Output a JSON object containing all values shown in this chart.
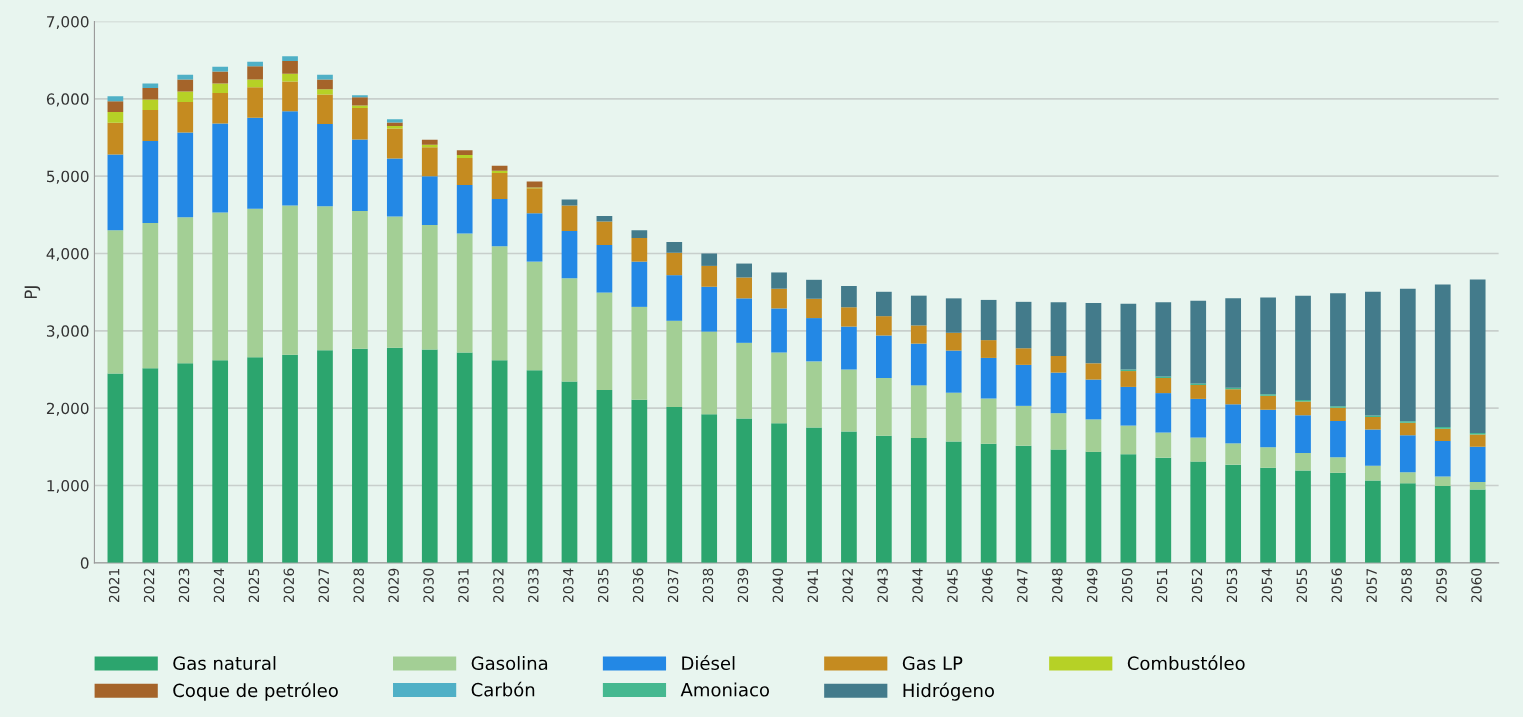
{
  "chart_data": {
    "type": "bar",
    "stacked": true,
    "ylabel": "PJ",
    "categories": [
      "2021",
      "2022",
      "2023",
      "2024",
      "2025",
      "2026",
      "2027",
      "2028",
      "2029",
      "2030",
      "2031",
      "2032",
      "2033",
      "2034",
      "2035",
      "2036",
      "2037",
      "2038",
      "2039",
      "2040",
      "2041",
      "2042",
      "2043",
      "2044",
      "2045",
      "2046",
      "2047",
      "2048",
      "2049",
      "2050",
      "2051",
      "2052",
      "2053",
      "2054",
      "2055",
      "2056",
      "2057",
      "2058",
      "2059",
      "2060"
    ],
    "ylim": [
      0,
      7000
    ],
    "yticks": [
      {
        "value": 0,
        "label": "0"
      },
      {
        "value": 1000,
        "label": "1,000"
      },
      {
        "value": 2000,
        "label": "2,000"
      },
      {
        "value": 3000,
        "label": "3,000"
      },
      {
        "value": 4000,
        "label": "4,000"
      },
      {
        "value": 5000,
        "label": "5,000"
      },
      {
        "value": 6000,
        "label": "6,000"
      },
      {
        "value": 7000,
        "label": "7,000"
      }
    ],
    "grid": "y",
    "legend": "bottom",
    "series": [
      {
        "name": "Gas natural",
        "color": "#2ca56e",
        "values": [
          2450,
          2515,
          2580,
          2620,
          2660,
          2690,
          2750,
          2770,
          2780,
          2760,
          2720,
          2620,
          2490,
          2345,
          2235,
          2110,
          2015,
          1920,
          1865,
          1805,
          1750,
          1700,
          1645,
          1615,
          1570,
          1540,
          1515,
          1465,
          1435,
          1405,
          1360,
          1310,
          1270,
          1230,
          1195,
          1165,
          1065,
          1030,
          995,
          950
        ]
      },
      {
        "name": "Gasolina",
        "color": "#a3cf95",
        "values": [
          1850,
          1880,
          1890,
          1910,
          1920,
          1930,
          1860,
          1780,
          1700,
          1610,
          1540,
          1475,
          1405,
          1335,
          1260,
          1200,
          1115,
          1070,
          980,
          915,
          855,
          800,
          745,
          680,
          630,
          585,
          515,
          470,
          420,
          370,
          325,
          310,
          275,
          265,
          225,
          200,
          190,
          140,
          120,
          95
        ]
      },
      {
        "name": "Diésel",
        "color": "#2388e5",
        "values": [
          980,
          1060,
          1095,
          1150,
          1175,
          1220,
          1065,
          925,
          750,
          630,
          625,
          610,
          625,
          610,
          615,
          585,
          590,
          580,
          575,
          570,
          560,
          555,
          550,
          540,
          545,
          525,
          530,
          525,
          515,
          500,
          510,
          500,
          505,
          485,
          490,
          470,
          470,
          480,
          460,
          455
        ]
      },
      {
        "name": "Gas LP",
        "color": "#c58b20",
        "values": [
          410,
          400,
          395,
          395,
          395,
          385,
          380,
          405,
          385,
          375,
          350,
          335,
          325,
          330,
          305,
          305,
          290,
          270,
          270,
          255,
          250,
          250,
          250,
          235,
          230,
          230,
          215,
          215,
          210,
          205,
          195,
          180,
          195,
          180,
          175,
          170,
          160,
          160,
          160,
          160
        ]
      },
      {
        "name": "Combustóleo",
        "color": "#b6d126",
        "values": [
          140,
          135,
          135,
          125,
          100,
          100,
          70,
          35,
          35,
          30,
          40,
          30,
          10,
          0,
          0,
          0,
          0,
          0,
          0,
          0,
          0,
          0,
          0,
          0,
          0,
          0,
          0,
          0,
          0,
          0,
          0,
          0,
          0,
          0,
          0,
          0,
          0,
          0,
          0,
          0
        ]
      },
      {
        "name": "Coque de petróleo",
        "color": "#a5642a",
        "values": [
          140,
          150,
          155,
          155,
          170,
          165,
          125,
          105,
          45,
          65,
          60,
          65,
          77,
          0,
          0,
          0,
          0,
          0,
          0,
          0,
          0,
          0,
          0,
          0,
          0,
          0,
          0,
          0,
          0,
          0,
          0,
          0,
          0,
          0,
          0,
          0,
          0,
          0,
          0,
          0
        ]
      },
      {
        "name": "Carbón",
        "color": "#4fb0c6",
        "values": [
          65,
          60,
          60,
          60,
          60,
          60,
          60,
          25,
          40,
          0,
          0,
          0,
          0,
          0,
          0,
          0,
          0,
          0,
          0,
          0,
          0,
          0,
          0,
          0,
          0,
          0,
          0,
          0,
          0,
          0,
          0,
          0,
          0,
          0,
          0,
          0,
          0,
          0,
          0,
          0
        ]
      },
      {
        "name": "Amoniaco",
        "color": "#45b890",
        "values": [
          0,
          0,
          0,
          0,
          0,
          0,
          0,
          0,
          0,
          0,
          0,
          0,
          0,
          0,
          0,
          0,
          0,
          0,
          0,
          0,
          0,
          0,
          0,
          0,
          0,
          0,
          0,
          0,
          0,
          20,
          20,
          20,
          20,
          20,
          20,
          20,
          20,
          20,
          20,
          20
        ]
      },
      {
        "name": "Hidrógeno",
        "color": "#437b8b",
        "values": [
          0,
          0,
          0,
          0,
          0,
          0,
          0,
          0,
          0,
          0,
          0,
          0,
          0,
          80,
          70,
          100,
          140,
          160,
          180,
          210,
          245,
          275,
          315,
          385,
          445,
          520,
          600,
          695,
          780,
          850,
          960,
          1070,
          1155,
          1250,
          1350,
          1460,
          1600,
          1715,
          1845,
          1985
        ]
      }
    ]
  }
}
